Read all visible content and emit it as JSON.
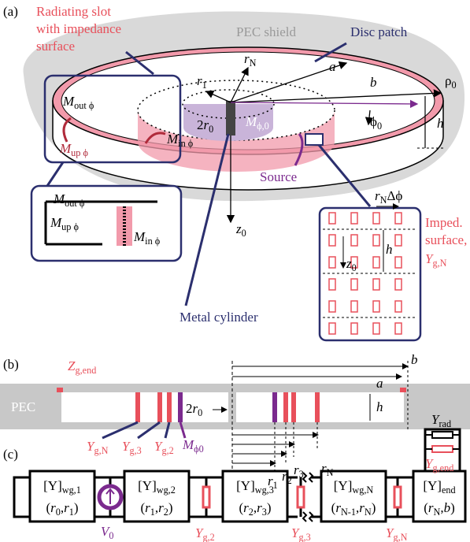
{
  "panel_a": {
    "label": "(a)",
    "slot_label": [
      "Radiating slot",
      "with impedance",
      "surface"
    ],
    "shield": "PEC shield",
    "disc_patch": "Disc patch",
    "r_N": [
      {
        "it": "r"
      },
      {
        "sub": "N"
      }
    ],
    "a": [
      {
        "it": "a"
      }
    ],
    "r_1": [
      {
        "it": "r"
      },
      {
        "sub": "1"
      }
    ],
    "b": [
      {
        "it": "b"
      }
    ],
    "rho_0": [
      {
        "text": "ρ"
      },
      {
        "sub": "0"
      }
    ],
    "phi_0": [
      {
        "text": "ϕ"
      },
      {
        "sub": "0"
      }
    ],
    "h": [
      {
        "it": "h"
      }
    ],
    "m_out": [
      {
        "it": "M"
      },
      {
        "sub": "out ϕ"
      }
    ],
    "m_up": [
      {
        "it": "M"
      },
      {
        "sub": "up ϕ"
      }
    ],
    "m_in": [
      {
        "it": "M"
      },
      {
        "sub": "in ϕ"
      }
    ],
    "two_r0": [
      {
        "text": "2"
      },
      {
        "it": "r"
      },
      {
        "sub": "0"
      }
    ],
    "m_phi0": [
      {
        "it": "M"
      },
      {
        "sub": "ϕ,0"
      }
    ],
    "source": "Source",
    "metal_cylinder": "Metal cylinder",
    "z0": [
      {
        "it": "z"
      },
      {
        "sub": "0"
      }
    ],
    "inset_left": {
      "m_out": [
        {
          "it": "M"
        },
        {
          "sub": "out ϕ"
        }
      ],
      "m_up": [
        {
          "it": "M"
        },
        {
          "sub": "up ϕ"
        }
      ],
      "m_in": [
        {
          "it": "M"
        },
        {
          "sub": "in ϕ"
        }
      ]
    },
    "inset_right": {
      "title": [
        "Imped.",
        "surface,"
      ],
      "y": [
        {
          "it": "Y"
        },
        {
          "sub": "g,N"
        }
      ],
      "rN_dphi": [
        {
          "it": "r"
        },
        {
          "sub": "N"
        },
        {
          "text": "Δϕ"
        }
      ],
      "h": [
        {
          "it": "h"
        }
      ],
      "z0": [
        {
          "it": "z"
        },
        {
          "sub": "0"
        }
      ]
    }
  },
  "panel_b": {
    "label": "(b)",
    "z_end": [
      {
        "it": "Z"
      },
      {
        "sub": "g,end"
      }
    ],
    "pec": "PEC",
    "b": [
      {
        "it": "b"
      }
    ],
    "a": [
      {
        "it": "a"
      }
    ],
    "h": [
      {
        "it": "h"
      }
    ],
    "two_r0": [
      {
        "text": "2"
      },
      {
        "it": "r"
      },
      {
        "sub": "0"
      }
    ],
    "r_N": [
      {
        "it": "r"
      },
      {
        "sub": "N"
      }
    ],
    "r_3": [
      {
        "it": "r"
      },
      {
        "sub": "3"
      }
    ],
    "r_2": [
      {
        "it": "r"
      },
      {
        "sub": "2"
      }
    ],
    "r_1": [
      {
        "it": "r"
      },
      {
        "sub": "1"
      }
    ],
    "y_gN": [
      {
        "it": "Y"
      },
      {
        "sub": "g,N"
      }
    ],
    "y_g3": [
      {
        "it": "Y"
      },
      {
        "sub": "g,3"
      }
    ],
    "y_g2": [
      {
        "it": "Y"
      },
      {
        "sub": "g,2"
      }
    ],
    "m_phi0": [
      {
        "it": "M"
      },
      {
        "sub": "ϕ0"
      }
    ]
  },
  "panel_c": {
    "label": "(c)",
    "y_rad": [
      {
        "it": "Y"
      },
      {
        "sub": "rad"
      }
    ],
    "y_end": [
      {
        "it": "Y"
      },
      {
        "sub": "g,end"
      }
    ],
    "blocks": [
      {
        "top": [
          {
            "text": "[Y]"
          },
          {
            "sub": "wg,1"
          }
        ],
        "bottom": [
          {
            "text": "("
          },
          {
            "it": "r"
          },
          {
            "sub": "0"
          },
          {
            "text": ","
          },
          {
            "it": "r"
          },
          {
            "sub": "1"
          },
          {
            "text": ")"
          }
        ]
      },
      {
        "top": [
          {
            "text": "[Y]"
          },
          {
            "sub": "wg,2"
          }
        ],
        "bottom": [
          {
            "text": "("
          },
          {
            "it": "r"
          },
          {
            "sub": "1"
          },
          {
            "text": ","
          },
          {
            "it": "r"
          },
          {
            "sub": "2"
          },
          {
            "text": ")"
          }
        ]
      },
      {
        "top": [
          {
            "text": "[Y]"
          },
          {
            "sub": "wg,3"
          }
        ],
        "bottom": [
          {
            "text": "("
          },
          {
            "it": "r"
          },
          {
            "sub": "2"
          },
          {
            "text": ","
          },
          {
            "it": "r"
          },
          {
            "sub": "3"
          },
          {
            "text": ")"
          }
        ]
      },
      {
        "top": [
          {
            "text": "[Y]"
          },
          {
            "sub": "wg,N"
          }
        ],
        "bottom": [
          {
            "text": "("
          },
          {
            "it": "r"
          },
          {
            "sub": "N-1"
          },
          {
            "text": ","
          },
          {
            "it": "r"
          },
          {
            "sub": "N"
          },
          {
            "text": ")"
          }
        ]
      },
      {
        "top": [
          {
            "text": "[Y]"
          },
          {
            "sub": "end"
          }
        ],
        "bottom": [
          {
            "text": "("
          },
          {
            "it": "r"
          },
          {
            "sub": "N"
          },
          {
            "text": ","
          },
          {
            "it": "b"
          },
          {
            "text": ")"
          }
        ]
      }
    ],
    "v0": [
      {
        "it": "V"
      },
      {
        "sub": "0"
      }
    ],
    "y_g2": [
      {
        "it": "Y"
      },
      {
        "sub": "g,2"
      }
    ],
    "y_g3": [
      {
        "it": "Y"
      },
      {
        "sub": "g,3"
      }
    ],
    "y_gN": [
      {
        "it": "Y"
      },
      {
        "sub": "g,N"
      }
    ]
  }
}
